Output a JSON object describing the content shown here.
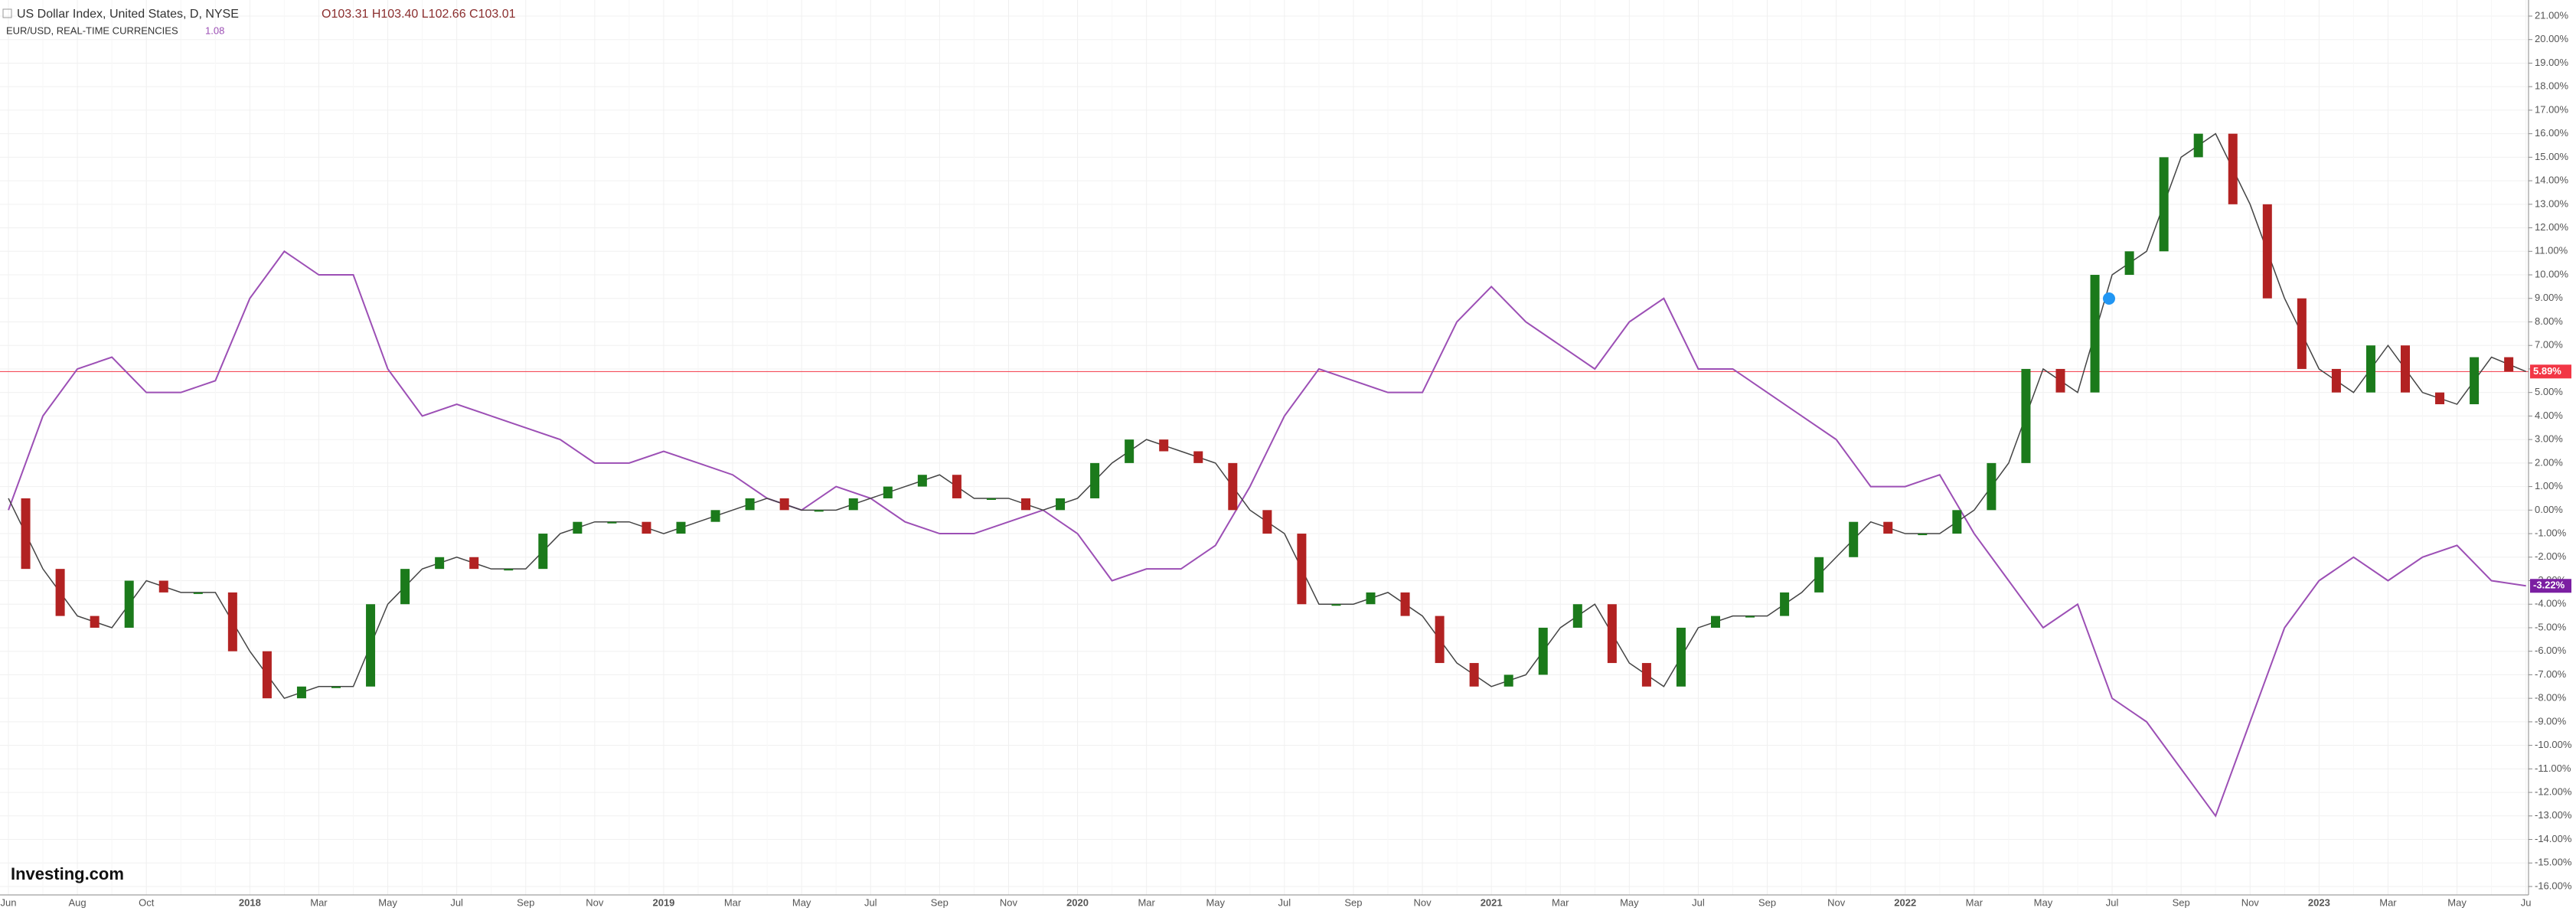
{
  "chart_data": {
    "type": "candle-compare",
    "title": "US Dollar Index, United States, D, NYSE",
    "ohlc": "O103.31  H103.40  L102.66  C103.01",
    "compare_title": "EUR/USD, REAL-TIME CURRENCIES",
    "compare_price": "1.08",
    "logo": "Investing.com",
    "categories": [
      "Jun",
      null,
      "Aug",
      null,
      "Oct",
      null,
      null,
      "2018",
      null,
      "Mar",
      null,
      "May",
      null,
      "Jul",
      null,
      "Sep",
      null,
      "Nov",
      null,
      "2019",
      null,
      "Mar",
      null,
      "May",
      null,
      "Jul",
      null,
      "Sep",
      null,
      "Nov",
      null,
      "2020",
      null,
      "Mar",
      null,
      "May",
      null,
      "Jul",
      null,
      "Sep",
      null,
      "Nov",
      null,
      "2021",
      null,
      "Mar",
      null,
      "May",
      null,
      "Jul",
      null,
      "Sep",
      null,
      "Nov",
      null,
      "2022",
      null,
      "Mar",
      null,
      "May",
      null,
      "Jul",
      null,
      "Sep",
      null,
      "Nov",
      null,
      "2023",
      null,
      "Mar",
      null,
      "May",
      null,
      "Ju"
    ],
    "series": [
      {
        "name": "US Dollar Index",
        "color": "#1b7a1b",
        "down_color": "#b22222",
        "last_label": "5.89%",
        "label_color": "#f23645",
        "values": [
          0.5,
          -2.5,
          -4.5,
          -5,
          -3,
          -3.5,
          -3.5,
          -6,
          -8,
          -7.5,
          -7.5,
          -4,
          -2.5,
          -2,
          -2.5,
          -2.5,
          -1,
          -0.5,
          -0.5,
          -1,
          -0.5,
          0,
          0.5,
          0,
          0,
          0.5,
          1,
          1.5,
          0.5,
          0.5,
          0,
          0.5,
          2,
          3,
          2.5,
          2,
          0,
          -1,
          -4,
          -4,
          -3.5,
          -4.5,
          -6.5,
          -7.5,
          -7,
          -5,
          -4,
          -6.5,
          -7.5,
          -5,
          -4.5,
          -4.5,
          -3.5,
          -2,
          -0.5,
          -1,
          -1,
          0,
          2,
          6,
          5,
          10,
          11,
          15,
          16,
          13,
          9,
          6,
          5,
          7,
          5,
          4.5,
          6.5,
          5.89
        ]
      },
      {
        "name": "EUR/USD",
        "color": "#9c4fb5",
        "last_label": "-3.22%",
        "label_color": "#7b1fa2",
        "values": [
          0,
          4,
          6,
          6.5,
          5,
          5,
          5.5,
          9,
          11,
          10,
          10,
          6,
          4,
          4.5,
          4,
          3.5,
          3,
          2,
          2,
          2.5,
          2,
          1.5,
          0.5,
          0,
          1,
          0.5,
          -0.5,
          -1,
          -1,
          -0.5,
          0,
          -1,
          -3,
          -2.5,
          -2.5,
          -1.5,
          1,
          4,
          6,
          5.5,
          5,
          5,
          8,
          9.5,
          8,
          7,
          6,
          8,
          9,
          6,
          6,
          5,
          4,
          3,
          1,
          1,
          1.5,
          -1,
          -3,
          -5,
          -4,
          -8,
          -9,
          -11,
          -13,
          -9,
          -5,
          -3,
          -2,
          -3,
          -2,
          -1.5,
          -3,
          -3.22
        ]
      }
    ],
    "ylim": [
      -16,
      21
    ],
    "yticks": [
      {
        "value": 21,
        "label": "21.00%"
      },
      {
        "value": 20,
        "label": "20.00%"
      },
      {
        "value": 19,
        "label": "19.00%"
      },
      {
        "value": 18,
        "label": "18.00%"
      },
      {
        "value": 17,
        "label": "17.00%"
      },
      {
        "value": 16,
        "label": "16.00%"
      },
      {
        "value": 15,
        "label": "15.00%"
      },
      {
        "value": 14,
        "label": "14.00%"
      },
      {
        "value": 13,
        "label": "13.00%"
      },
      {
        "value": 12,
        "label": "12.00%"
      },
      {
        "value": 11,
        "label": "11.00%"
      },
      {
        "value": 10,
        "label": "10.00%"
      },
      {
        "value": 9,
        "label": "9.00%"
      },
      {
        "value": 8,
        "label": "8.00%"
      },
      {
        "value": 7,
        "label": "7.00%"
      },
      {
        "value": 6,
        "label": "6.00%"
      },
      {
        "value": 5,
        "label": "5.00%"
      },
      {
        "value": 4,
        "label": "4.00%"
      },
      {
        "value": 3,
        "label": "3.00%"
      },
      {
        "value": 2,
        "label": "2.00%"
      },
      {
        "value": 1,
        "label": "1.00%"
      },
      {
        "value": 0,
        "label": "0.00%"
      },
      {
        "value": -1,
        "label": "-1.00%"
      },
      {
        "value": -2,
        "label": "-2.00%"
      },
      {
        "value": -3,
        "label": "-3.00%"
      },
      {
        "value": -4,
        "label": "-4.00%"
      },
      {
        "value": -5,
        "label": "-5.00%"
      },
      {
        "value": -6,
        "label": "-6.00%"
      },
      {
        "value": -7,
        "label": "-7.00%"
      },
      {
        "value": -8,
        "label": "-8.00%"
      },
      {
        "value": -9,
        "label": "-9.00%"
      },
      {
        "value": -10,
        "label": "-10.00%"
      },
      {
        "value": -11,
        "label": "-11.00%"
      },
      {
        "value": -12,
        "label": "-12.00%"
      },
      {
        "value": -13,
        "label": "-13.00%"
      },
      {
        "value": -14,
        "label": "-14.00%"
      },
      {
        "value": -15,
        "label": "-15.00%"
      },
      {
        "value": -16,
        "label": "-16.00%"
      }
    ],
    "grid": true
  }
}
